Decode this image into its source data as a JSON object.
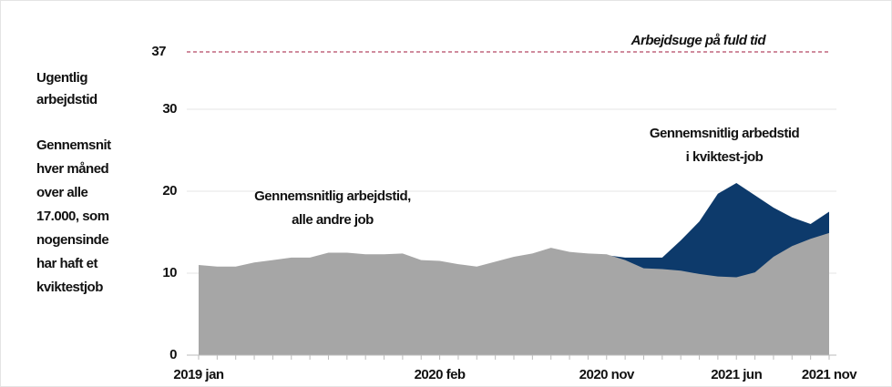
{
  "chart_data": {
    "type": "area",
    "ylabel": [
      "Ugentlig",
      "arbejdstid"
    ],
    "note": [
      "Gennemsnit",
      "hver måned",
      "over alle",
      "17.000, som",
      "nogensinde",
      "har haft et",
      "kviktestjob"
    ],
    "categories": [
      "2019 jan",
      null,
      null,
      null,
      null,
      null,
      null,
      null,
      null,
      null,
      null,
      null,
      null,
      "2020 feb",
      null,
      null,
      null,
      null,
      null,
      null,
      null,
      null,
      "2020 nov",
      null,
      null,
      null,
      null,
      null,
      null,
      "2021 jun",
      null,
      null,
      null,
      null,
      "2021 nov"
    ],
    "series": [
      {
        "label": [
          "Gennemsnitlig arbedstid",
          "i kviktest-job"
        ],
        "color": "#0d3a6b",
        "values": [
          null,
          null,
          null,
          null,
          null,
          null,
          null,
          null,
          null,
          null,
          null,
          null,
          null,
          null,
          null,
          null,
          null,
          null,
          null,
          null,
          null,
          null,
          12.2,
          11.9,
          11.9,
          11.9,
          14.0,
          16.3,
          19.7,
          21.0,
          19.5,
          18.0,
          16.8,
          16.0,
          17.5
        ]
      },
      {
        "label": [
          "Gennemsnitlig arbejdstid,",
          "alle andre job"
        ],
        "color": "#a6a6a6",
        "values": [
          11.0,
          10.8,
          10.8,
          11.3,
          11.6,
          11.9,
          11.9,
          12.5,
          12.5,
          12.3,
          12.3,
          12.4,
          11.6,
          11.5,
          11.1,
          10.8,
          11.4,
          12.0,
          12.4,
          13.1,
          12.6,
          12.4,
          12.3,
          11.6,
          10.6,
          10.5,
          10.3,
          9.9,
          9.6,
          9.5,
          10.1,
          12.0,
          13.3,
          14.2,
          14.9
        ]
      }
    ],
    "reference": {
      "value": 37,
      "label": "Arbejdsuge på fuld tid",
      "color": "#a0183c"
    },
    "ylim": [
      0,
      37
    ],
    "yticks": [
      0,
      10,
      20,
      30
    ],
    "grid": true
  }
}
